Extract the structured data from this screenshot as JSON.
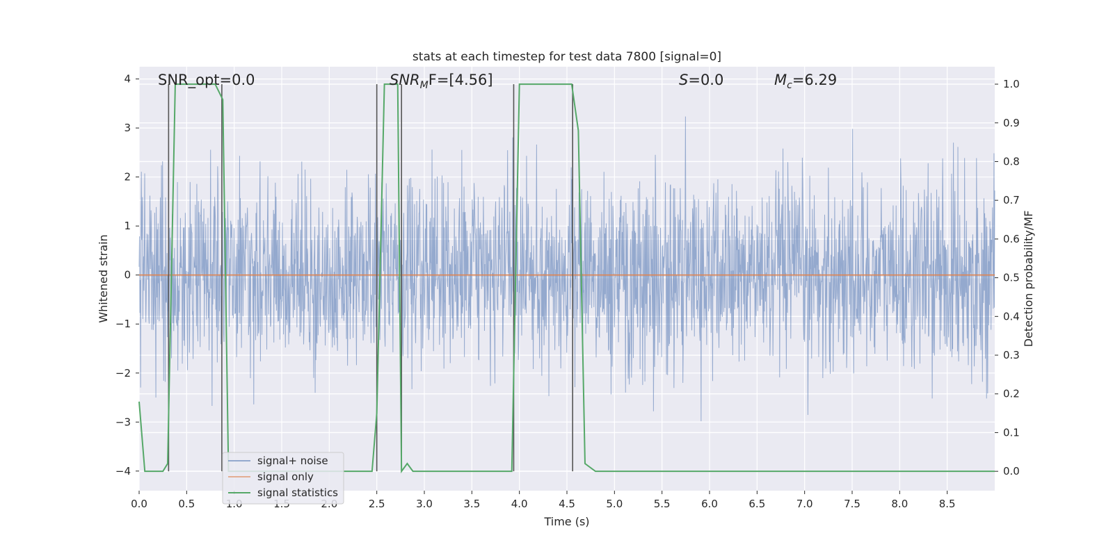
{
  "chart_data": {
    "type": "line",
    "title": "stats at each timestep for test data 7800 [signal=0]",
    "xlabel": "Time (s)",
    "ylabel": "Whitened strain",
    "y2label": "Detection probability/MF",
    "xlim": [
      0.0,
      9.0
    ],
    "ylim": [
      -4.4,
      4.25
    ],
    "y2lim": [
      -0.05,
      1.045
    ],
    "x_ticks": [
      0.0,
      0.5,
      1.0,
      1.5,
      2.0,
      2.5,
      3.0,
      3.5,
      4.0,
      4.5,
      5.0,
      5.5,
      6.0,
      6.5,
      7.0,
      7.5,
      8.0,
      8.5
    ],
    "x_tick_labels": [
      "0.0",
      "0.5",
      "1.0",
      "1.5",
      "2.0",
      "2.5",
      "3.0",
      "3.5",
      "4.0",
      "4.5",
      "5.0",
      "5.5",
      "6.0",
      "6.5",
      "7.0",
      "7.5",
      "8.0",
      "8.5"
    ],
    "y_ticks": [
      4,
      3,
      2,
      1,
      0,
      -1,
      -2,
      -3,
      -4
    ],
    "y_tick_labels": [
      "4",
      "3",
      "2",
      "1",
      "0",
      "−1",
      "−2",
      "−3",
      "−4"
    ],
    "y2_ticks": [
      1.0,
      0.9,
      0.8,
      0.7,
      0.6,
      0.5,
      0.4,
      0.3,
      0.2,
      0.1,
      0.0
    ],
    "y2_tick_labels": [
      "1.0",
      "0.9",
      "0.8",
      "0.7",
      "0.6",
      "0.5",
      "0.4",
      "0.3",
      "0.2",
      "0.1",
      "0.0"
    ],
    "grid": true,
    "legend_position": "lower-left",
    "annotations": [
      "SNR_opt=0.0",
      "F=[4.56]",
      "=0.0",
      "=6.29"
    ],
    "series": [
      {
        "name": "signal+ noise",
        "axis": "left",
        "color": "#4c72b0",
        "description_range": [
          -4.0,
          3.8
        ],
        "noise_sigma": 0.95
      },
      {
        "name": "signal only",
        "axis": "left",
        "color": "#dd8452",
        "constant_value": 0.0
      },
      {
        "name": "signal statistics",
        "axis": "right",
        "color": "#55a868",
        "x": [
          0.0,
          0.06,
          0.12,
          0.25,
          0.3,
          0.38,
          0.45,
          0.55,
          0.65,
          0.8,
          0.88,
          0.94,
          1.0,
          1.5,
          2.0,
          2.3,
          2.45,
          2.5,
          2.58,
          2.65,
          2.72,
          2.76,
          2.82,
          2.88,
          3.0,
          3.5,
          3.8,
          3.92,
          4.0,
          4.2,
          4.4,
          4.55,
          4.62,
          4.69,
          4.8,
          5.0,
          6.0,
          7.0,
          8.0,
          9.0
        ],
        "y": [
          0.18,
          0.0,
          0.0,
          0.0,
          0.02,
          1.0,
          1.0,
          1.0,
          1.0,
          1.0,
          0.96,
          0.0,
          0.0,
          0.0,
          0.0,
          0.0,
          0.0,
          0.15,
          1.0,
          1.0,
          1.0,
          0.0,
          0.02,
          0.0,
          0.0,
          0.0,
          0.0,
          0.0,
          1.0,
          1.0,
          1.0,
          1.0,
          0.88,
          0.02,
          0.0,
          0.0,
          0.0,
          0.0,
          0.0,
          0.0
        ]
      }
    ],
    "vertical_lines": [
      {
        "x": 0.31,
        "ymin": 0.0,
        "ymax": 1.0
      },
      {
        "x": 0.87,
        "ymin": 0.0,
        "ymax": 1.0
      },
      {
        "x": 2.5,
        "ymin": 0.0,
        "ymax": 1.0
      },
      {
        "x": 2.76,
        "ymin": 0.0,
        "ymax": 1.0
      },
      {
        "x": 3.94,
        "ymin": 0.0,
        "ymax": 1.0
      },
      {
        "x": 4.56,
        "ymin": 0.0,
        "ymax": 1.0
      }
    ]
  }
}
